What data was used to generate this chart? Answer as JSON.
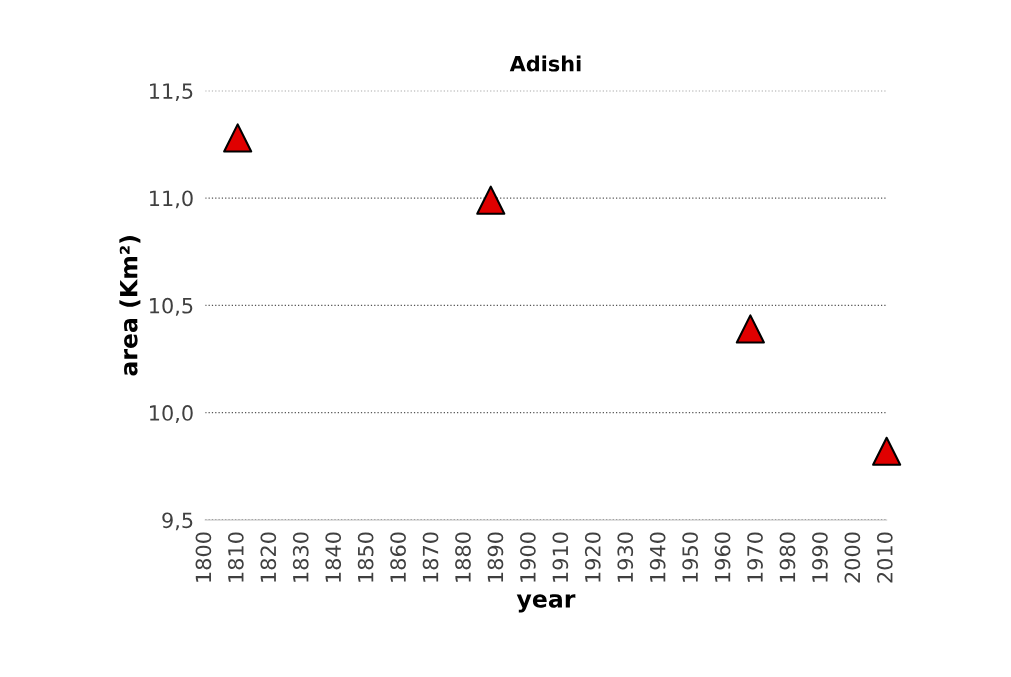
{
  "chart_data": {
    "type": "scatter",
    "title": "Adishi",
    "xlabel": "year",
    "ylabel": "area (Km²)",
    "x": [
      1810,
      1888,
      1968,
      2010
    ],
    "series": [
      {
        "color": "#e00000",
        "values": [
          11.28,
          10.99,
          10.39,
          9.82
        ]
      }
    ],
    "marker": "triangle",
    "xlim": [
      1800,
      2010
    ],
    "xticks": [
      1800,
      1810,
      1820,
      1830,
      1840,
      1850,
      1860,
      1870,
      1880,
      1890,
      1900,
      1910,
      1920,
      1930,
      1940,
      1950,
      1960,
      1970,
      1980,
      1990,
      2000,
      2010
    ],
    "ylim": [
      9.5,
      11.5
    ],
    "yticks": [
      {
        "value": 9.5,
        "label": "9,5"
      },
      {
        "value": 10.0,
        "label": "10,0"
      },
      {
        "value": 10.5,
        "label": "10,5"
      },
      {
        "value": 11.0,
        "label": "11,0"
      },
      {
        "value": 11.5,
        "label": "11,5"
      }
    ],
    "grid": "y"
  }
}
